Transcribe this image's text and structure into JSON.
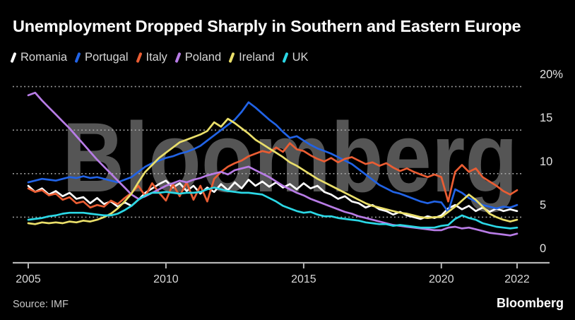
{
  "watermark": "Bloomberg",
  "footer": {
    "source": "Source: IMF",
    "brand": "Bloomberg"
  },
  "colors": {
    "background": "#000000",
    "axis": "#b5b5b5",
    "grid_dots": "#a8a8a8",
    "tick_labels": "#d9d9d9",
    "legend_text": "#d6d6d6",
    "watermark": "#555555"
  },
  "chart_data": {
    "type": "line",
    "title": "Unemployment Dropped Sharply in Southern and Eastern Europe",
    "xlabel": "",
    "ylabel": "",
    "unit": "%",
    "ylim": [
      0,
      20
    ],
    "grid": "horizontal-dotted",
    "legend_position": "top",
    "x_start": 2005,
    "x_step_years": 0.25,
    "x_end": 2022.75,
    "y_ticks": [
      {
        "value": 20,
        "label": "20%"
      },
      {
        "value": 15,
        "label": "15"
      },
      {
        "value": 10,
        "label": "10"
      },
      {
        "value": 5,
        "label": "5"
      },
      {
        "value": 0,
        "label": "0"
      }
    ],
    "x_ticks": [
      {
        "year": 2005,
        "label": "2005"
      },
      {
        "year": 2010,
        "label": "2010"
      },
      {
        "year": 2015,
        "label": "2015"
      },
      {
        "year": 2020,
        "label": "2020"
      },
      {
        "year": 2022,
        "label": "2022",
        "at_data_end": true
      }
    ],
    "series": [
      {
        "name": "Romania",
        "color": "#ffffff",
        "values": [
          8.6,
          7.9,
          8.3,
          7.6,
          8.0,
          7.4,
          7.8,
          7.1,
          7.3,
          6.6,
          7.2,
          6.5,
          6.8,
          6.2,
          6.7,
          6.3,
          7.0,
          7.8,
          8.3,
          8.8,
          9.2,
          8.4,
          8.9,
          8.0,
          8.6,
          7.7,
          8.4,
          7.9,
          8.8,
          8.1,
          9.0,
          8.3,
          9.3,
          8.6,
          9.1,
          8.5,
          9.0,
          8.4,
          8.8,
          8.2,
          8.9,
          8.3,
          8.6,
          7.9,
          7.6,
          7.1,
          7.4,
          6.8,
          6.6,
          6.1,
          6.4,
          5.9,
          5.7,
          5.3,
          5.6,
          5.2,
          5.0,
          4.8,
          5.1,
          4.9,
          5.2,
          6.0,
          6.4,
          5.9,
          6.3,
          5.7,
          6.1,
          5.6,
          6.0,
          5.7,
          5.9,
          5.7
        ]
      },
      {
        "name": "Portugal",
        "color": "#2163e6",
        "values": [
          9.0,
          9.2,
          9.4,
          9.3,
          9.2,
          9.4,
          9.6,
          9.5,
          9.7,
          9.5,
          9.6,
          9.4,
          9.2,
          9.0,
          9.3,
          9.6,
          10.2,
          10.8,
          11.2,
          11.5,
          11.8,
          12.0,
          12.3,
          12.5,
          12.8,
          13.2,
          13.8,
          14.4,
          15.0,
          15.6,
          16.2,
          17.1,
          18.2,
          17.6,
          16.9,
          16.2,
          15.6,
          14.8,
          14.1,
          14.3,
          13.8,
          13.3,
          12.9,
          12.6,
          12.3,
          11.9,
          11.5,
          11.1,
          10.5,
          9.9,
          9.3,
          8.7,
          8.3,
          7.9,
          7.7,
          7.4,
          7.1,
          6.8,
          6.6,
          6.8,
          6.7,
          5.6,
          8.2,
          7.8,
          7.2,
          6.8,
          6.4,
          6.2,
          6.0,
          6.2,
          6.1,
          6.4
        ]
      },
      {
        "name": "Italy",
        "color": "#ea5d33",
        "values": [
          8.3,
          7.9,
          8.1,
          7.5,
          7.7,
          7.0,
          7.3,
          6.6,
          6.8,
          6.1,
          6.4,
          6.2,
          6.9,
          6.5,
          7.2,
          7.8,
          8.6,
          7.4,
          8.9,
          7.8,
          6.9,
          8.8,
          7.4,
          9.0,
          7.0,
          8.6,
          6.8,
          9.4,
          10.2,
          10.8,
          11.2,
          11.5,
          12.0,
          12.3,
          12.6,
          12.4,
          13.0,
          12.5,
          13.5,
          12.8,
          12.6,
          12.1,
          11.7,
          11.4,
          11.8,
          11.3,
          11.7,
          11.9,
          11.5,
          11.1,
          11.3,
          10.9,
          11.2,
          10.7,
          10.3,
          10.6,
          10.2,
          9.9,
          9.6,
          9.9,
          9.6,
          6.8,
          10.2,
          11.0,
          10.2,
          10.6,
          9.6,
          9.1,
          8.6,
          8.0,
          7.6,
          8.1
        ]
      },
      {
        "name": "Poland",
        "color": "#b87ce6",
        "values": [
          19.0,
          19.3,
          18.4,
          17.6,
          16.8,
          16.0,
          15.2,
          14.3,
          13.4,
          12.5,
          11.6,
          10.8,
          10.0,
          9.2,
          8.4,
          7.6,
          7.1,
          7.4,
          7.8,
          8.2,
          8.6,
          8.9,
          9.2,
          9.0,
          9.3,
          9.5,
          9.8,
          10.0,
          10.2,
          9.9,
          10.4,
          10.6,
          10.8,
          10.4,
          10.0,
          9.6,
          9.1,
          8.6,
          8.2,
          7.8,
          7.5,
          7.1,
          6.8,
          6.5,
          6.2,
          5.9,
          5.6,
          5.4,
          5.1,
          4.9,
          4.7,
          4.5,
          4.3,
          4.1,
          4.0,
          3.9,
          3.8,
          3.7,
          3.6,
          3.5,
          3.5,
          3.8,
          3.9,
          3.7,
          3.8,
          3.6,
          3.4,
          3.2,
          3.1,
          3.0,
          2.9,
          3.1
        ]
      },
      {
        "name": "Ireland",
        "color": "#eadf6a",
        "values": [
          4.3,
          4.2,
          4.4,
          4.3,
          4.4,
          4.3,
          4.5,
          4.4,
          4.6,
          4.5,
          4.7,
          5.0,
          5.4,
          6.0,
          6.8,
          7.7,
          9.0,
          10.2,
          11.0,
          11.8,
          12.4,
          13.0,
          13.6,
          13.9,
          14.2,
          14.5,
          14.9,
          15.9,
          15.4,
          16.3,
          15.8,
          15.2,
          14.6,
          13.9,
          13.4,
          12.9,
          12.4,
          11.9,
          11.3,
          10.9,
          10.4,
          9.9,
          9.4,
          9.0,
          8.6,
          8.2,
          7.8,
          7.4,
          7.0,
          6.6,
          6.3,
          6.1,
          5.9,
          5.7,
          5.5,
          5.4,
          5.2,
          5.0,
          4.9,
          5.0,
          5.0,
          5.6,
          6.2,
          6.9,
          7.6,
          7.0,
          6.2,
          5.4,
          5.0,
          4.7,
          4.5,
          4.7
        ]
      },
      {
        "name": "UK",
        "color": "#2bd8e6",
        "values": [
          4.7,
          4.8,
          4.9,
          5.1,
          5.2,
          5.4,
          5.5,
          5.5,
          5.5,
          5.4,
          5.3,
          5.2,
          5.2,
          5.4,
          5.8,
          6.3,
          7.0,
          7.5,
          7.8,
          7.8,
          7.9,
          7.8,
          7.7,
          7.8,
          7.8,
          7.9,
          8.2,
          8.4,
          8.2,
          8.0,
          7.9,
          7.8,
          7.8,
          7.7,
          7.6,
          7.2,
          6.8,
          6.3,
          6.0,
          5.7,
          5.5,
          5.6,
          5.3,
          5.1,
          5.1,
          4.9,
          4.8,
          4.7,
          4.6,
          4.4,
          4.3,
          4.2,
          4.2,
          4.0,
          4.1,
          4.0,
          3.9,
          3.8,
          3.8,
          3.8,
          4.0,
          4.1,
          4.8,
          5.2,
          4.9,
          4.7,
          4.3,
          4.1,
          3.9,
          3.8,
          3.7,
          3.8
        ]
      }
    ]
  }
}
